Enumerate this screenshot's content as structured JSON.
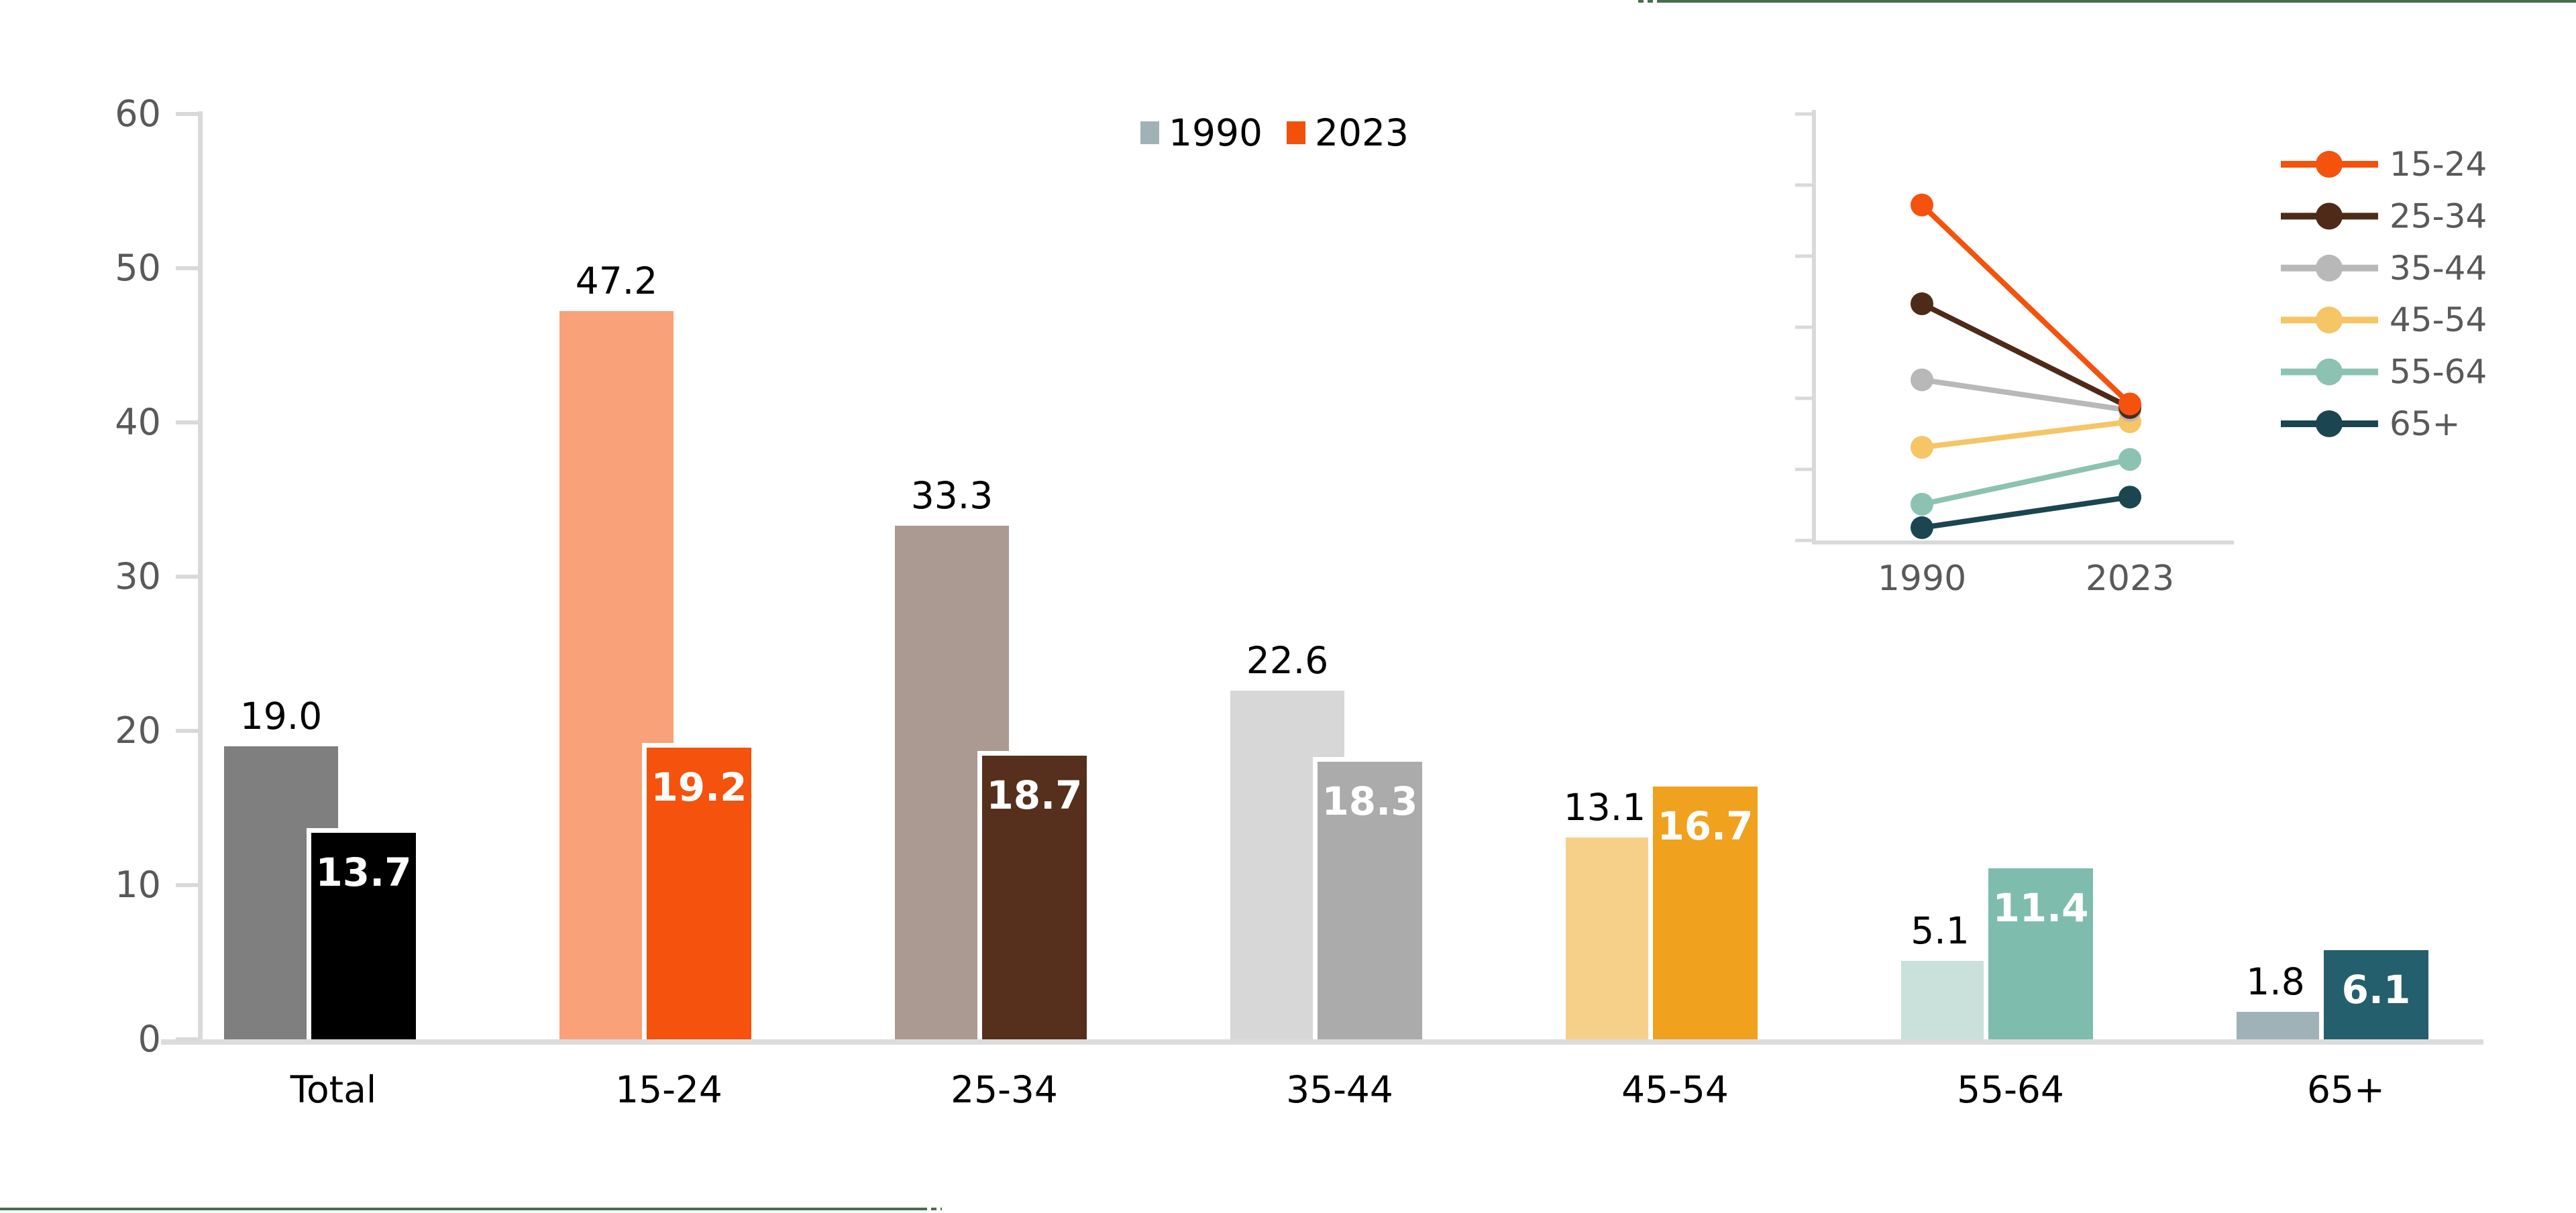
{
  "chart_data": [
    {
      "id": "bar-main",
      "type": "bar",
      "title": "",
      "xlabel": "",
      "ylabel": "",
      "categories": [
        "Total",
        "15-24",
        "25-34",
        "35-44",
        "45-54",
        "55-64",
        "65+"
      ],
      "series": [
        {
          "name": "1990",
          "values": [
            19.0,
            47.2,
            33.3,
            22.6,
            13.1,
            5.1,
            1.8
          ],
          "labels": [
            "19.0",
            "47.2",
            "33.3",
            "22.6",
            "13.1",
            "5.1",
            "1.8"
          ],
          "colors": [
            "#7F7F7F",
            "#F9A178",
            "#AB9A92",
            "#D7D7D7",
            "#F6D089",
            "#C9E1DA",
            "#9FB2B8"
          ],
          "legend_swatch": "#9FB3B6"
        },
        {
          "name": "2023",
          "values": [
            13.7,
            19.2,
            18.7,
            18.3,
            16.7,
            11.4,
            6.1
          ],
          "labels": [
            "13.7",
            "19.2",
            "18.7",
            "18.3",
            "16.7",
            "11.4",
            "6.1"
          ],
          "colors": [
            "#000000",
            "#F4520D",
            "#562F1D",
            "#ABABAB",
            "#F0A11D",
            "#7EBDAD",
            "#245F6E"
          ],
          "legend_swatch": "#F2500B"
        }
      ],
      "ylim": [
        0,
        60
      ],
      "yticks": [
        0,
        10,
        20,
        30,
        40,
        50,
        60
      ],
      "grid": false,
      "legend_position": "top-center",
      "style": {
        "axis_color": "#D9D9D9",
        "tick_label_color": "#595959",
        "value_label_color_1990": "#000000",
        "value_label_color_2023": "#FFFFFF",
        "front_bar_border_color": "#FFFFFF"
      }
    },
    {
      "id": "line-inset",
      "type": "line",
      "title": "",
      "x": [
        "1990",
        "2023"
      ],
      "series": [
        {
          "name": "15-24",
          "color": "#F4520D",
          "values": [
            47.2,
            19.2
          ]
        },
        {
          "name": "25-34",
          "color": "#4D2B18",
          "values": [
            33.3,
            18.7
          ]
        },
        {
          "name": "35-44",
          "color": "#B8B8B8",
          "values": [
            22.6,
            18.3
          ]
        },
        {
          "name": "45-54",
          "color": "#F5C566",
          "values": [
            13.1,
            16.7
          ]
        },
        {
          "name": "55-64",
          "color": "#8CC2B1",
          "values": [
            5.1,
            11.4
          ]
        },
        {
          "name": "65+",
          "color": "#1B4551",
          "values": [
            1.8,
            6.1
          ]
        }
      ],
      "ylim": [
        0,
        60
      ],
      "ytick_count": 7,
      "grid": false,
      "legend_position": "right",
      "style": {
        "axis_color": "#D9D9D9",
        "tick_label_color": "#595959"
      }
    }
  ],
  "decorations": {
    "partial_border_color": "#476F4E",
    "top_right_partial_border": "cropped element edge, dotted then solid, along top edge",
    "bottom_left_partial_border": "cropped element edge, solid then dotted, along bottom edge"
  }
}
